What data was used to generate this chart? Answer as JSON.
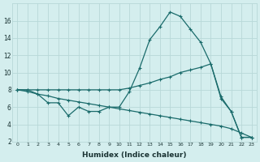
{
  "xlabel": "Humidex (Indice chaleur)",
  "bg_color": "#d4eeee",
  "line_color": "#1a6b6b",
  "grid_color": "#b8d8d8",
  "x_data": [
    0,
    1,
    2,
    3,
    4,
    5,
    6,
    7,
    8,
    9,
    10,
    11,
    12,
    13,
    14,
    15,
    16,
    17,
    18,
    19,
    20,
    21,
    22,
    23
  ],
  "line1": [
    8.0,
    8.0,
    7.5,
    6.5,
    6.5,
    5.0,
    6.0,
    5.5,
    5.5,
    6.0,
    6.0,
    7.8,
    10.5,
    13.8,
    15.3,
    17.0,
    16.5,
    15.0,
    13.5,
    11.0,
    7.0,
    5.5,
    2.5,
    2.5
  ],
  "line2": [
    8.0,
    8.0,
    8.0,
    8.0,
    8.0,
    8.0,
    8.0,
    8.0,
    8.0,
    8.0,
    8.0,
    8.2,
    8.5,
    8.8,
    9.2,
    9.5,
    10.0,
    10.3,
    10.6,
    11.0,
    7.2,
    5.5,
    2.5,
    2.5
  ],
  "line3": [
    8.0,
    7.8,
    7.5,
    7.3,
    7.0,
    6.8,
    6.6,
    6.4,
    6.2,
    6.0,
    5.8,
    5.6,
    5.4,
    5.2,
    5.0,
    4.8,
    4.6,
    4.4,
    4.2,
    4.0,
    3.8,
    3.5,
    3.0,
    2.5
  ],
  "ylim": [
    2,
    18
  ],
  "xlim": [
    -0.5,
    23.5
  ],
  "yticks": [
    2,
    4,
    6,
    8,
    10,
    12,
    14,
    16
  ],
  "xticks": [
    0,
    1,
    2,
    3,
    4,
    5,
    6,
    7,
    8,
    9,
    10,
    11,
    12,
    13,
    14,
    15,
    16,
    17,
    18,
    19,
    20,
    21,
    22,
    23
  ]
}
